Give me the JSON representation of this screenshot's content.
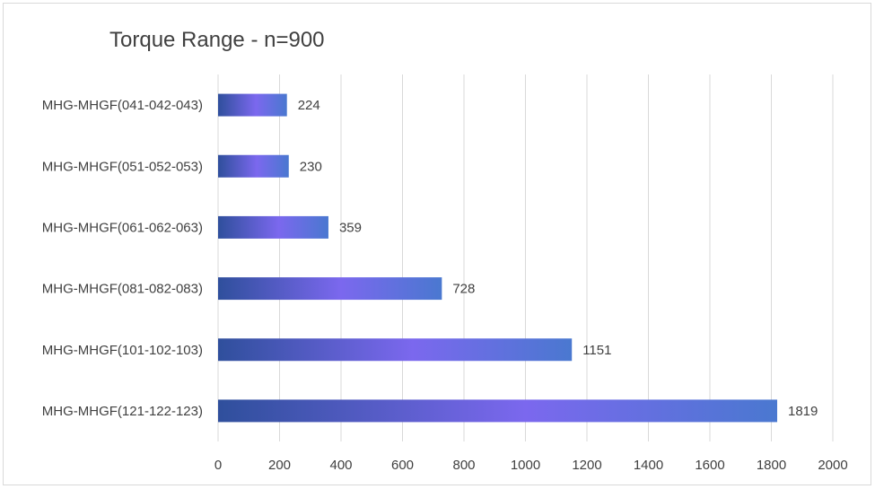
{
  "chart_data": {
    "type": "bar",
    "orientation": "horizontal",
    "title": "Torque Range - n=900",
    "xlabel": "",
    "ylabel": "",
    "categories": [
      "MHG-MHGF(041-042-043)",
      "MHG-MHGF(051-052-053)",
      "MHG-MHGF(061-062-063)",
      "MHG-MHGF(081-082-083)",
      "MHG-MHGF(101-102-103)",
      "MHG-MHGF(121-122-123)"
    ],
    "values": [
      224,
      230,
      359,
      728,
      1151,
      1819
    ],
    "xlim": [
      0,
      2000
    ],
    "ticks": [
      0,
      200,
      400,
      600,
      800,
      1000,
      1200,
      1400,
      1600,
      1800,
      2000
    ],
    "grid": true,
    "legend": "none",
    "colors": {
      "bar_edge": "#2f4f9c",
      "bar_mid": "#7b68ee",
      "bar_end": "#4a78d0",
      "gridline": "#d9d9d9",
      "text": "#404040"
    }
  }
}
